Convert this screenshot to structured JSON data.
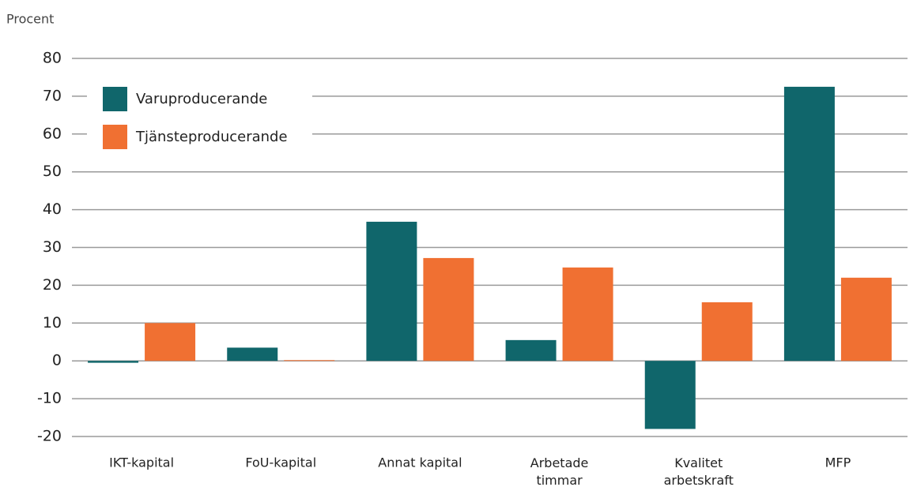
{
  "chart_data": {
    "type": "bar",
    "y_label": "Procent",
    "categories": [
      "IKT-kapital",
      "FoU-kapital",
      "Annat kapital",
      "Arbetade timmar",
      "Kvalitet arbetskraft",
      "MFP"
    ],
    "series": [
      {
        "name": "Varuproducerande",
        "color": "#10666b",
        "values": [
          -0.5,
          3.5,
          36.8,
          5.5,
          -18,
          72.5
        ]
      },
      {
        "name": "Tjänsteproducerande",
        "color": "#f07032",
        "values": [
          10,
          0.2,
          27.2,
          24.7,
          15.5,
          22
        ]
      }
    ],
    "ylim": [
      -20,
      80
    ],
    "yticks": [
      -20,
      -10,
      0,
      10,
      20,
      30,
      40,
      50,
      60,
      70,
      80
    ],
    "grid": true,
    "legend": "upper left"
  }
}
